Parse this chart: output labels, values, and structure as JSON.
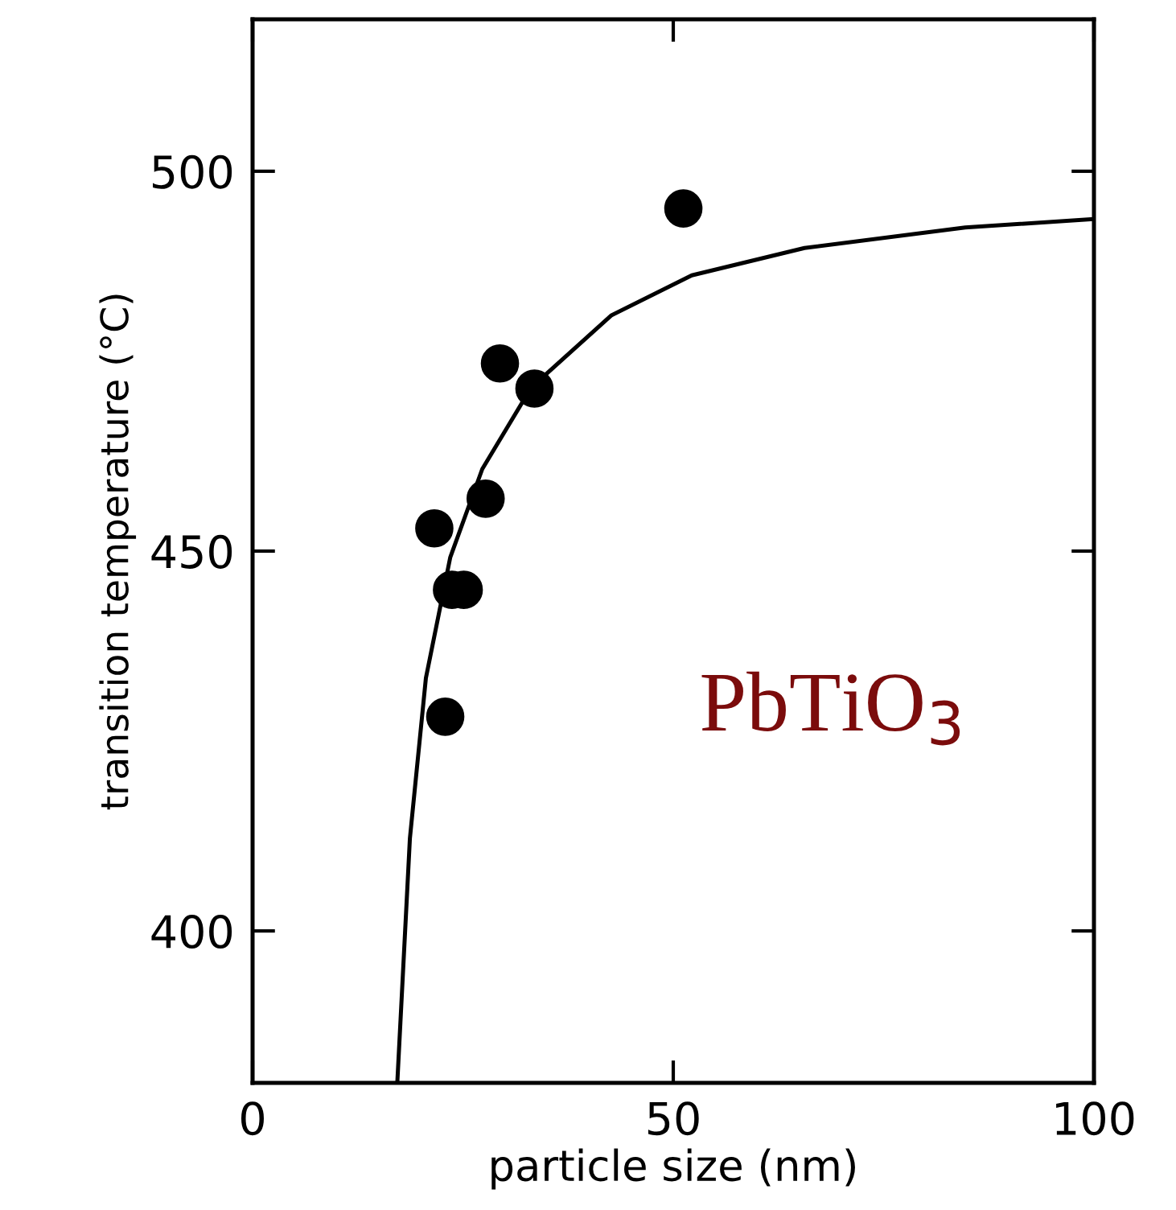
{
  "chart_data": {
    "type": "scatter",
    "xlabel": "particle size (nm)",
    "ylabel": "transition temperature (°C)",
    "xlim": [
      0,
      100
    ],
    "ylim": [
      380,
      520
    ],
    "xticks": [
      0,
      50,
      100
    ],
    "yticks": [
      400,
      450,
      500
    ],
    "grid": false,
    "legend": false,
    "annotations": [
      "PbTiO$_{3}$"
    ],
    "series": [
      {
        "color": "#000000",
        "marker": "circle",
        "x": [
          21.6,
          22.9,
          23.7,
          25.1,
          27.7,
          29.4,
          33.5,
          51.2
        ],
        "values": [
          453,
          428.2,
          444.9,
          444.9,
          456.9,
          474.7,
          471.4,
          495.1
        ]
      },
      {
        "type": "line",
        "color": "#000000",
        "marker": "none",
        "line_style": "solid",
        "x": [
          17.2,
          18.7,
          20.6,
          23.5,
          27.3,
          33.1,
          42.6,
          52.2,
          65.6,
          84.7,
          100
        ],
        "values": [
          380,
          412.2,
          433.3,
          449.2,
          460.8,
          471.5,
          481,
          486.3,
          489.9,
          492.6,
          493.7
        ]
      }
    ]
  }
}
